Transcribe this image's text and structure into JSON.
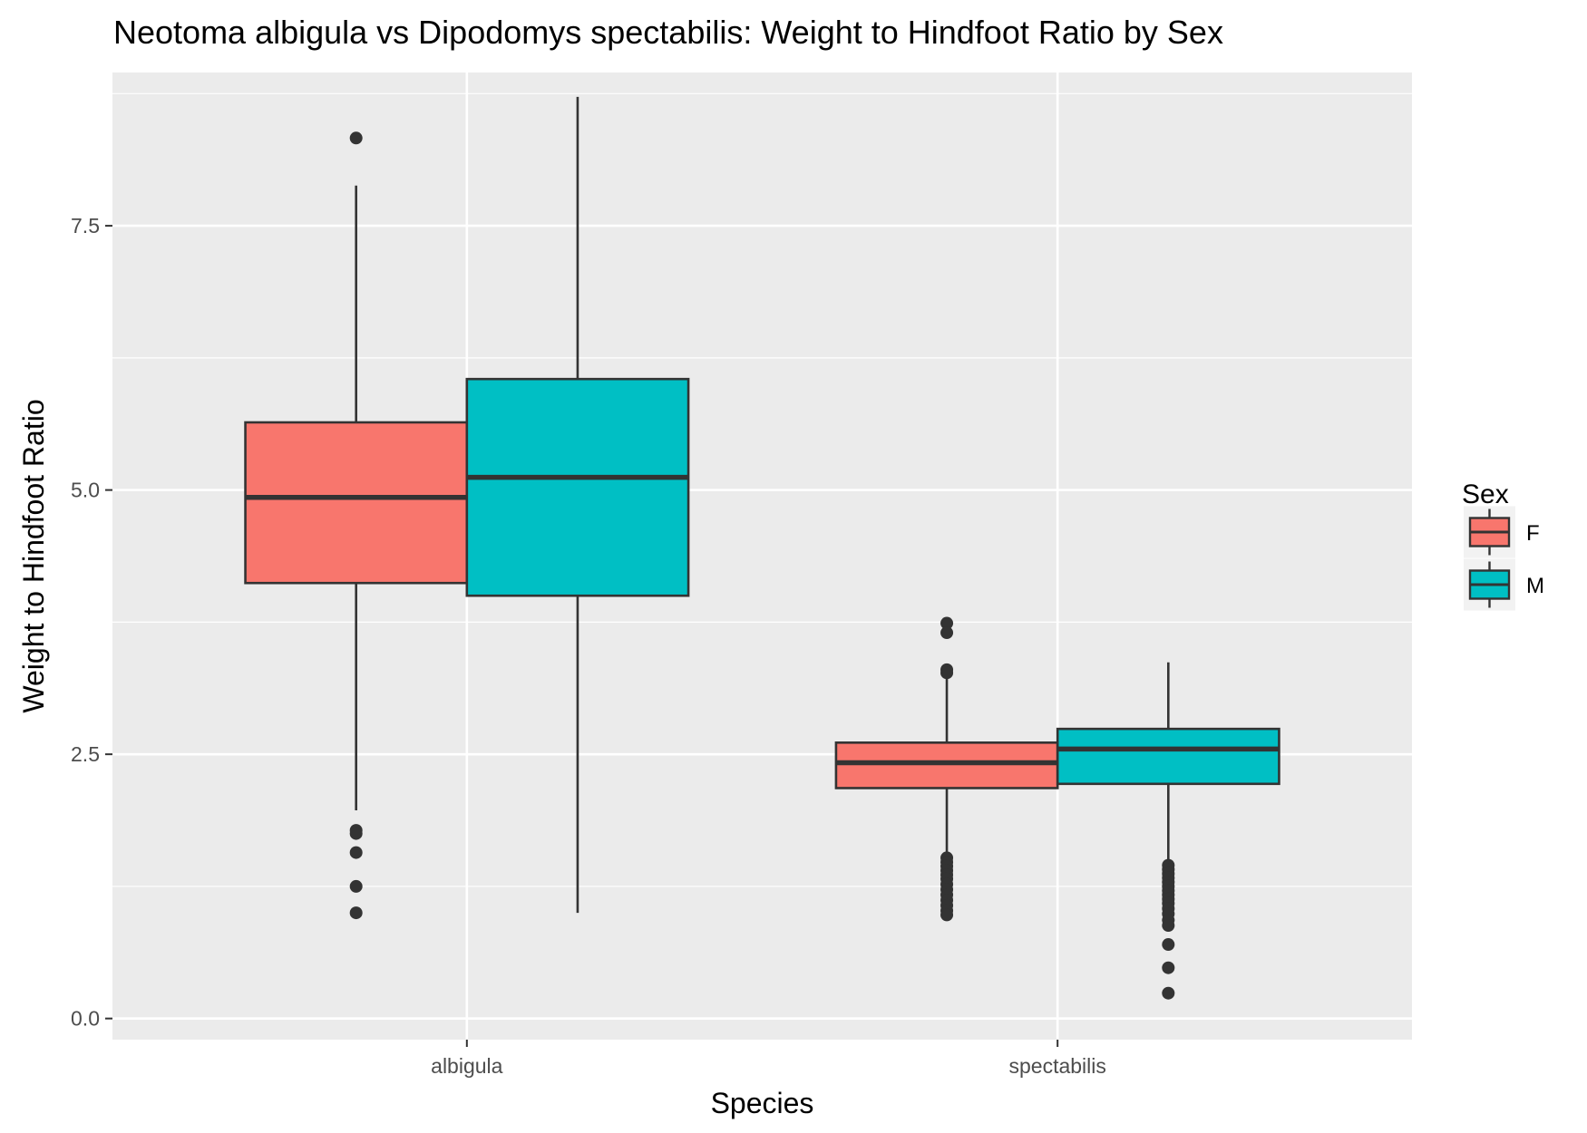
{
  "chart_data": {
    "type": "box",
    "title": "Neotoma albigula vs Dipodomys spectabilis: Weight to Hindfoot Ratio by Sex",
    "xlabel": "Species",
    "ylabel": "Weight to Hindfoot Ratio",
    "categories": [
      "albigula",
      "spectabilis"
    ],
    "ylim": [
      -0.2,
      8.95
    ],
    "yticks": [
      0.0,
      2.5,
      5.0,
      7.5
    ],
    "ytick_labels": [
      "0.0",
      "2.5",
      "5.0",
      "7.5"
    ],
    "grid": true,
    "legend": {
      "title": "Sex",
      "position": "right"
    },
    "series": [
      {
        "name": "F",
        "color": "#F8766D",
        "boxes": [
          {
            "category": "albigula",
            "whisker_low": 1.97,
            "q1": 4.12,
            "median": 4.93,
            "q3": 5.64,
            "whisker_high": 7.88,
            "outliers": [
              8.33,
              1.78,
              1.75,
              1.57,
              1.25,
              1.0
            ]
          },
          {
            "category": "spectabilis",
            "whisker_low": 1.55,
            "q1": 2.18,
            "median": 2.42,
            "q3": 2.61,
            "whisker_high": 3.25,
            "outliers": [
              3.74,
              3.65,
              3.3,
              3.27,
              1.52,
              1.48,
              1.44,
              1.4,
              1.36,
              1.32,
              1.27,
              1.22,
              1.17,
              1.12,
              1.07,
              1.02,
              0.98
            ]
          }
        ]
      },
      {
        "name": "M",
        "color": "#00BFC4",
        "boxes": [
          {
            "category": "albigula",
            "whisker_low": 1.0,
            "q1": 4.0,
            "median": 5.12,
            "q3": 6.05,
            "whisker_high": 8.72,
            "outliers": []
          },
          {
            "category": "spectabilis",
            "whisker_low": 1.5,
            "q1": 2.22,
            "median": 2.55,
            "q3": 2.74,
            "whisker_high": 3.37,
            "outliers": [
              1.45,
              1.41,
              1.37,
              1.33,
              1.29,
              1.25,
              1.21,
              1.17,
              1.13,
              1.09,
              1.04,
              0.99,
              0.93,
              0.88,
              0.7,
              0.48,
              0.24
            ]
          }
        ]
      }
    ]
  }
}
